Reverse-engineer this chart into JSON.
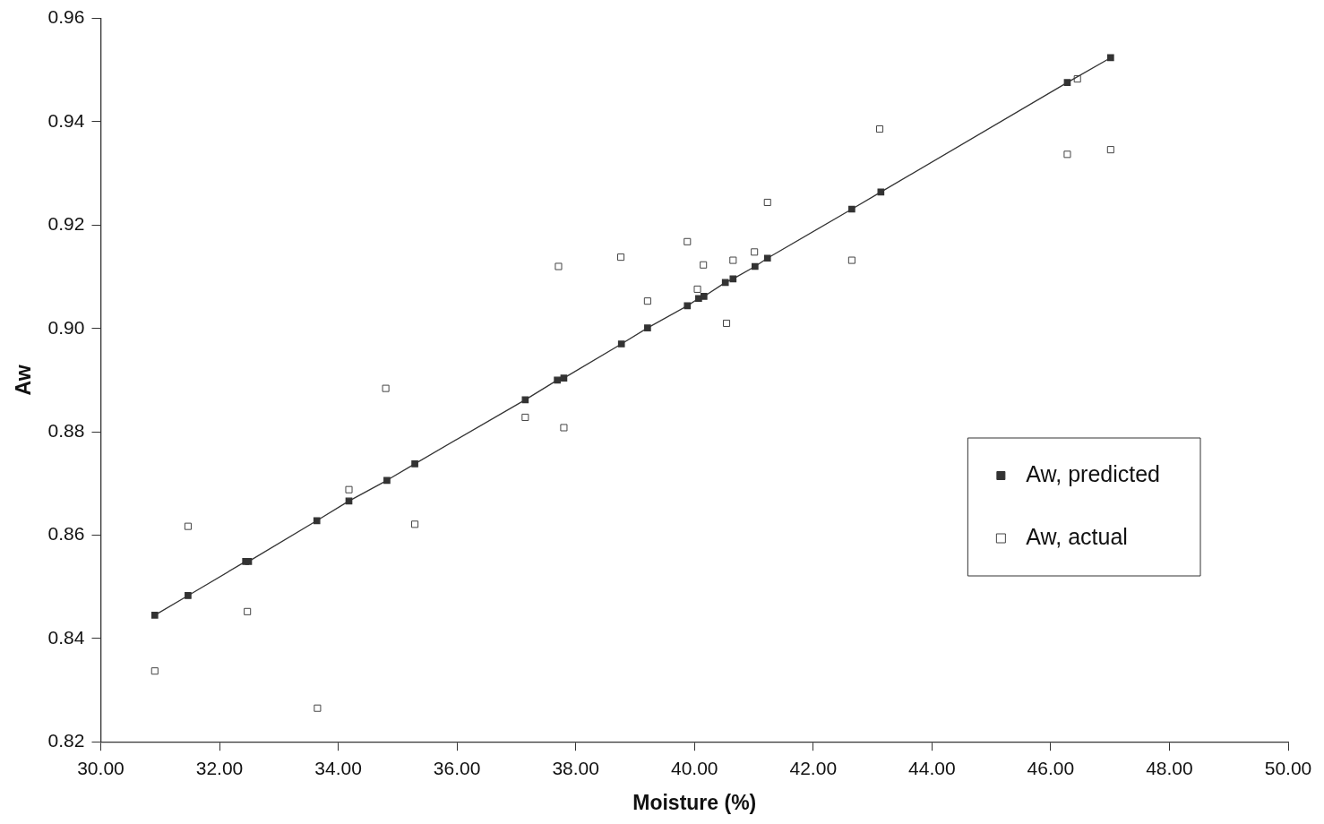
{
  "chart_data": {
    "type": "scatter",
    "xlabel": "Moisture (%)",
    "ylabel": "Aw",
    "xlim": [
      30,
      50
    ],
    "xticks": [
      {
        "value": 30,
        "label": "30.00"
      },
      {
        "value": 32,
        "label": "32.00"
      },
      {
        "value": 34,
        "label": "34.00"
      },
      {
        "value": 36,
        "label": "36.00"
      },
      {
        "value": 38,
        "label": "38.00"
      },
      {
        "value": 40,
        "label": "40.00"
      },
      {
        "value": 42,
        "label": "42.00"
      },
      {
        "value": 44,
        "label": "44.00"
      },
      {
        "value": 46,
        "label": "46.00"
      },
      {
        "value": 48,
        "label": "48.00"
      },
      {
        "value": 50,
        "label": "50.00"
      }
    ],
    "ylim": [
      0.82,
      0.96
    ],
    "yticks": [
      {
        "value": 0.82,
        "label": "0.82"
      },
      {
        "value": 0.84,
        "label": "0.84"
      },
      {
        "value": 0.86,
        "label": "0.86"
      },
      {
        "value": 0.88,
        "label": "0.88"
      },
      {
        "value": 0.9,
        "label": "0.90"
      },
      {
        "value": 0.92,
        "label": "0.92"
      },
      {
        "value": 0.94,
        "label": "0.94"
      },
      {
        "value": 0.96,
        "label": "0.96"
      }
    ],
    "grid": false,
    "legend": "right",
    "marker": "square",
    "series": [
      {
        "name": "Aw, predicted",
        "type": "line",
        "color": "#333333",
        "x": [
          30.91,
          31.47,
          32.44,
          32.49,
          33.64,
          34.18,
          34.82,
          35.29,
          37.15,
          37.69,
          37.8,
          38.77,
          39.21,
          39.88,
          40.07,
          40.16,
          40.52,
          40.65,
          41.02,
          41.23,
          42.65,
          43.14,
          46.28,
          47.01
        ],
        "values": [
          0.8445,
          0.8483,
          0.8549,
          0.8549,
          0.8628,
          0.8666,
          0.8706,
          0.8738,
          0.8862,
          0.89,
          0.8904,
          0.897,
          0.9001,
          0.9044,
          0.9058,
          0.9062,
          0.9089,
          0.9096,
          0.912,
          0.9136,
          0.9231,
          0.9264,
          0.9476,
          0.9524
        ]
      },
      {
        "name": "Aw, actual",
        "type": "scatter",
        "color": "#444444",
        "x": [
          30.91,
          31.47,
          32.47,
          33.65,
          34.18,
          34.8,
          35.29,
          37.15,
          37.71,
          37.8,
          38.76,
          39.21,
          39.88,
          40.05,
          40.15,
          40.54,
          40.65,
          41.01,
          41.23,
          42.65,
          43.12,
          46.28,
          46.45,
          47.01
        ],
        "values": [
          0.8337,
          0.8617,
          0.8452,
          0.8265,
          0.8688,
          0.8884,
          0.8621,
          0.8828,
          0.912,
          0.8808,
          0.9138,
          0.9053,
          0.9168,
          0.9076,
          0.9123,
          0.901,
          0.9132,
          0.9148,
          0.9244,
          0.9132,
          0.9386,
          0.9337,
          0.9483,
          0.9346
        ]
      }
    ]
  }
}
